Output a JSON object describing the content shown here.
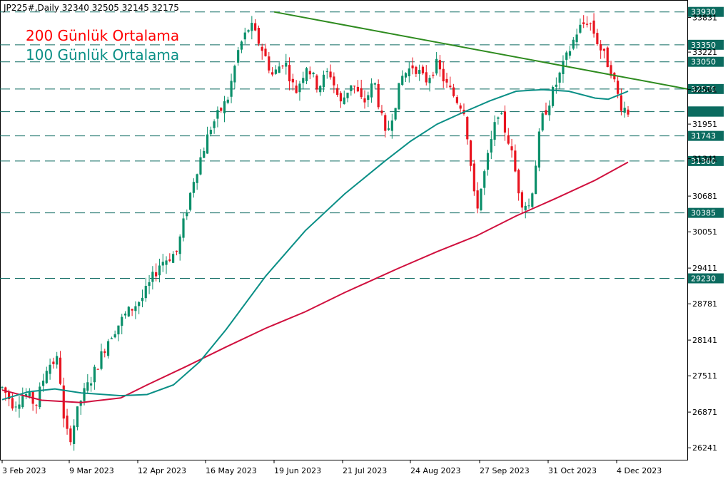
{
  "chart_data": {
    "type": "candlestick",
    "symbol_line": "JP225#,Daily  32340 32505 32145 32175",
    "legend": [
      {
        "name": "200 Günlük Ortalama",
        "color": "#ff0000"
      },
      {
        "name": "100 Günlük Ortalama",
        "color": "#0a8f86"
      }
    ],
    "x_tick_labels": [
      "3 Feb 2023",
      "9 Mar 2023",
      "12 Apr 2023",
      "16 May 2023",
      "19 Jun 2023",
      "21 Jul 2023",
      "24 Aug 2023",
      "27 Sep 2023",
      "31 Oct 2023",
      "4 Dec 2023"
    ],
    "y_tick_labels": [
      33831,
      33221,
      32561,
      31951,
      31341,
      30681,
      30051,
      29411,
      28781,
      28141,
      27511,
      26871,
      26241
    ],
    "ylim": [
      26030,
      34140
    ],
    "levels": [
      33930,
      33350,
      33050,
      32570,
      32170,
      31743,
      31300,
      30385,
      29230
    ],
    "level_style": "dashed",
    "trendline": {
      "from": {
        "x": "2023-06-19",
        "y": 33930
      },
      "to": {
        "x": "2023-12-31",
        "y": 32570
      },
      "color": "#2e8b1f"
    },
    "last_price": 32175,
    "ma200": [
      [
        0,
        27260
      ],
      [
        30,
        27080
      ],
      [
        60,
        27040
      ],
      [
        90,
        27120
      ],
      [
        110,
        27350
      ],
      [
        140,
        27680
      ],
      [
        170,
        28020
      ],
      [
        200,
        28350
      ],
      [
        230,
        28640
      ],
      [
        260,
        28980
      ],
      [
        300,
        29400
      ],
      [
        330,
        29700
      ],
      [
        360,
        29980
      ],
      [
        390,
        30330
      ],
      [
        420,
        30640
      ],
      [
        450,
        30960
      ],
      [
        475,
        31280
      ]
    ],
    "ma100": [
      [
        0,
        27090
      ],
      [
        20,
        27230
      ],
      [
        40,
        27280
      ],
      [
        60,
        27210
      ],
      [
        90,
        27160
      ],
      [
        110,
        27180
      ],
      [
        130,
        27350
      ],
      [
        150,
        27760
      ],
      [
        170,
        28330
      ],
      [
        200,
        29270
      ],
      [
        230,
        30070
      ],
      [
        260,
        30720
      ],
      [
        290,
        31290
      ],
      [
        310,
        31650
      ],
      [
        330,
        31950
      ],
      [
        350,
        32160
      ],
      [
        370,
        32360
      ],
      [
        390,
        32530
      ],
      [
        410,
        32560
      ],
      [
        430,
        32530
      ],
      [
        450,
        32410
      ],
      [
        460,
        32390
      ],
      [
        475,
        32530
      ]
    ],
    "candles_desc": "daily OHLC candles, green=up, red=down"
  }
}
